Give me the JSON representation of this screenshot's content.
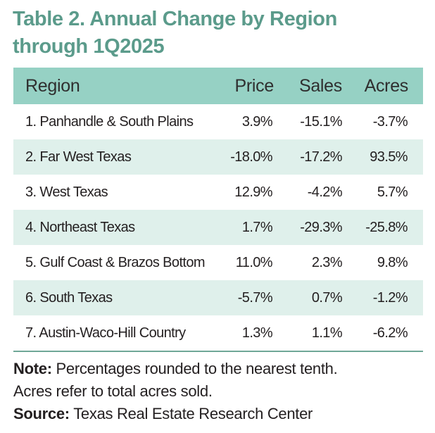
{
  "title": {
    "line1": "Table 2. Annual Change by Region",
    "line2": "through 1Q2025"
  },
  "table": {
    "headers": [
      "Region",
      "Price",
      "Sales",
      "Acres"
    ],
    "rows": [
      [
        "1. Panhandle & South Plains",
        "3.9%",
        "-15.1%",
        "-3.7%"
      ],
      [
        "2. Far West Texas",
        "-18.0%",
        "-17.2%",
        "93.5%"
      ],
      [
        "3. West Texas",
        "12.9%",
        "-4.2%",
        "5.7%"
      ],
      [
        "4. Northeast Texas",
        "1.7%",
        "-29.3%",
        "-25.8%"
      ],
      [
        "5. Gulf Coast & Brazos Bottom",
        "11.0%",
        "2.3%",
        "9.8%"
      ],
      [
        "6. South Texas",
        "-5.7%",
        "0.7%",
        "-1.2%"
      ],
      [
        "7. Austin-Waco-Hill Country",
        "1.3%",
        "1.1%",
        "-6.2%"
      ]
    ]
  },
  "notes": {
    "note_label": "Note:",
    "note_text": " Percentages rounded to the nearest tenth.",
    "note_line2": "Acres refer to total acres sold.",
    "source_label": "Source:",
    "source_text": " Texas Real Estate Research Center"
  },
  "colors": {
    "title": "#5b9b8b",
    "header_bg": "#96d1c4",
    "alt_row_bg": "#dff0eb",
    "rule": "#6fa797"
  }
}
